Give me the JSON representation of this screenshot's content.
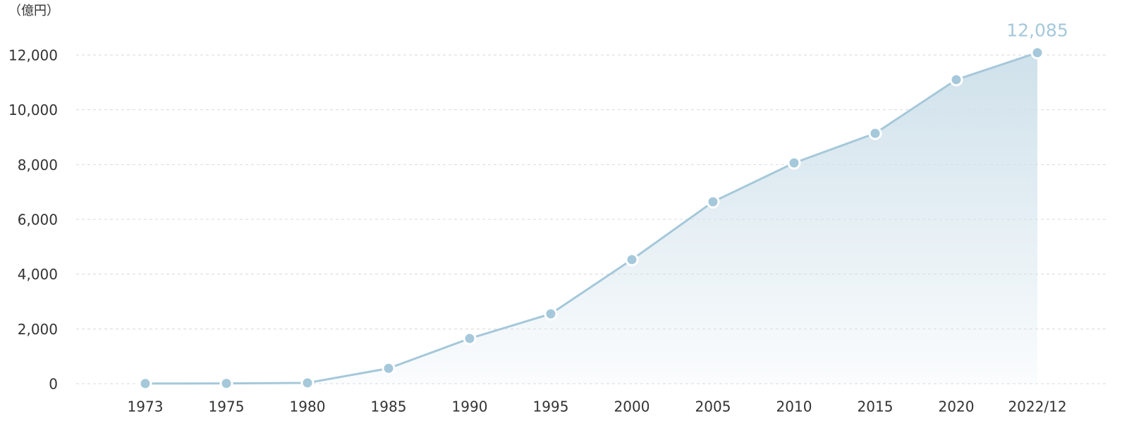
{
  "chart_data": {
    "type": "area-line",
    "y_label": "（億円）",
    "categories": [
      "1973",
      "1975",
      "1980",
      "1985",
      "1990",
      "1995",
      "2000",
      "2005",
      "2010",
      "2015",
      "2020",
      "2022/12"
    ],
    "values": [
      5,
      10,
      30,
      560,
      1650,
      2550,
      4530,
      6640,
      8060,
      9140,
      11100,
      12085
    ],
    "value_labels": [
      null,
      null,
      null,
      null,
      null,
      null,
      null,
      null,
      null,
      null,
      null,
      "12,085"
    ],
    "color": "#a5c8da",
    "ylim": [
      0,
      12000
    ],
    "yticks": [
      0,
      {
        "value": 2000,
        "label": "2,000"
      },
      {
        "value": 4000,
        "label": "4,000"
      },
      {
        "value": 6000,
        "label": "6,000"
      },
      {
        "value": 8000,
        "label": "8,000"
      },
      {
        "value": 10000,
        "label": "10,000"
      },
      {
        "value": 12000,
        "label": "12,000"
      }
    ],
    "grid": true
  }
}
